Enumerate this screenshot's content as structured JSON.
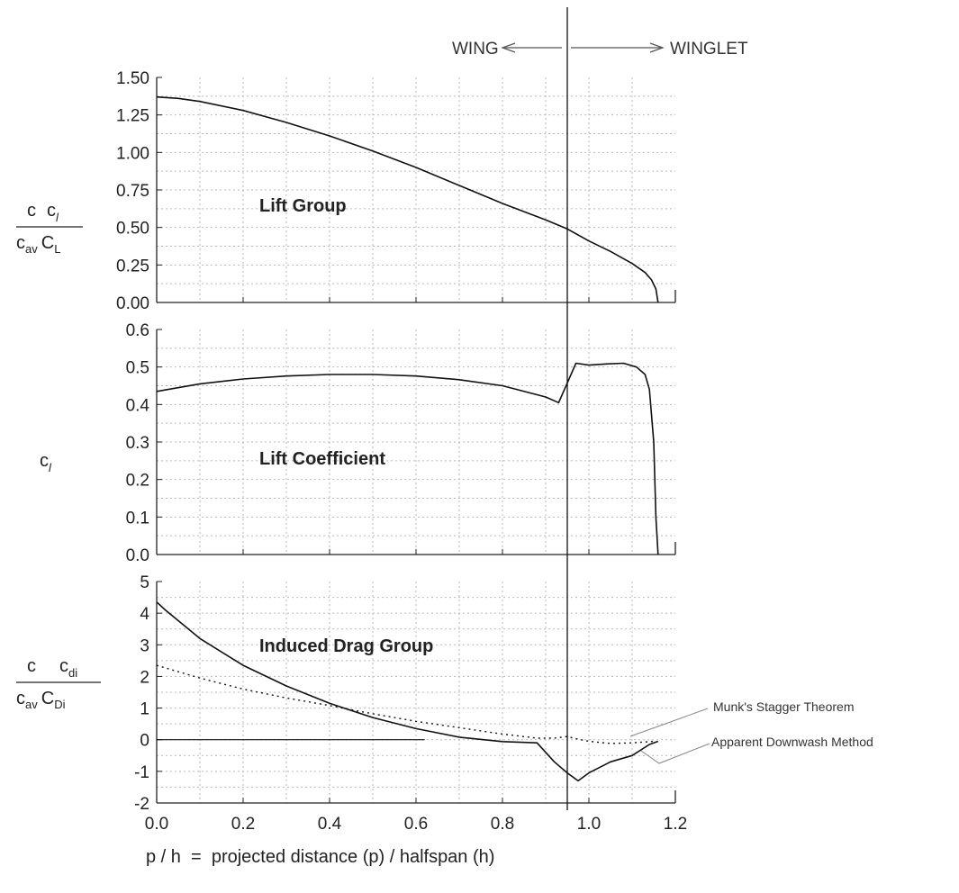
{
  "header": {
    "wing_label": "WING",
    "winglet_label": "WINGLET"
  },
  "xlabel": "p / h  =  projected distance (p) / halfspan (h)",
  "annotations": {
    "munk": "Munk's Stagger Theorem",
    "downwash": "Apparent Downwash Method"
  },
  "y_labels": {
    "top": {
      "num_c": "c",
      "num_c2": "c",
      "num_sub": "l",
      "den_c": "c",
      "den_c_sub": "av",
      "den_C": "C",
      "den_C_sub": "L"
    },
    "mid": {
      "c": "c",
      "sub": "l"
    },
    "bot": {
      "num_c": "c",
      "num_c2": "c",
      "num_sub": "di",
      "den_c": "c",
      "den_c_sub": "av",
      "den_C": "C",
      "den_C_sub": "Di"
    }
  },
  "chart_data": {
    "type": "line",
    "x_ticks": [
      "0.0",
      "0.2",
      "0.4",
      "0.6",
      "0.8",
      "1.0",
      "1.2"
    ],
    "xlim": [
      0,
      1.2
    ],
    "vertical_marker_x": 0.95,
    "grid": true,
    "panels": [
      {
        "id": "lift-group",
        "label": "Lift Group",
        "ylim": [
          0,
          1.5
        ],
        "y_ticks": [
          "0.00",
          "0.25",
          "0.50",
          "0.75",
          "1.00",
          "1.25",
          "1.50"
        ],
        "series": [
          {
            "style": "solid",
            "x": [
              0,
              0.05,
              0.1,
              0.2,
              0.3,
              0.4,
              0.5,
              0.6,
              0.7,
              0.8,
              0.9,
              0.95,
              1.0,
              1.05,
              1.1,
              1.13,
              1.145,
              1.155,
              1.16
            ],
            "y": [
              1.37,
              1.36,
              1.34,
              1.28,
              1.2,
              1.11,
              1.01,
              0.9,
              0.78,
              0.66,
              0.55,
              0.49,
              0.41,
              0.34,
              0.26,
              0.2,
              0.15,
              0.09,
              0.0
            ]
          }
        ]
      },
      {
        "id": "lift-coefficient",
        "label": "Lift Coefficient",
        "ylim": [
          0,
          0.6
        ],
        "y_ticks": [
          "0.0",
          "0.1",
          "0.2",
          "0.3",
          "0.4",
          "0.5",
          "0.6"
        ],
        "series": [
          {
            "style": "solid",
            "x": [
              0,
              0.1,
              0.2,
              0.3,
              0.4,
              0.5,
              0.6,
              0.7,
              0.8,
              0.9,
              0.93,
              0.97,
              1.0,
              1.04,
              1.08,
              1.11,
              1.13,
              1.14,
              1.15,
              1.155,
              1.16
            ],
            "y": [
              0.435,
              0.455,
              0.468,
              0.476,
              0.48,
              0.48,
              0.476,
              0.466,
              0.45,
              0.42,
              0.405,
              0.51,
              0.505,
              0.508,
              0.51,
              0.5,
              0.48,
              0.44,
              0.3,
              0.1,
              0.0
            ]
          }
        ]
      },
      {
        "id": "induced-drag-group",
        "label": "Induced Drag Group",
        "ylim": [
          -2,
          5
        ],
        "y_ticks": [
          "-2",
          "-1",
          "0",
          "1",
          "2",
          "3",
          "4",
          "5"
        ],
        "series": [
          {
            "name": "Apparent Downwash Method",
            "style": "solid",
            "x": [
              0,
              0.02,
              0.1,
              0.2,
              0.3,
              0.4,
              0.5,
              0.6,
              0.7,
              0.8,
              0.88,
              0.92,
              0.95,
              0.975,
              1.0,
              1.05,
              1.1,
              1.14,
              1.16
            ],
            "y": [
              4.35,
              4.1,
              3.2,
              2.35,
              1.7,
              1.15,
              0.7,
              0.35,
              0.08,
              -0.06,
              -0.1,
              -0.7,
              -1.05,
              -1.3,
              -1.05,
              -0.7,
              -0.5,
              -0.15,
              -0.05
            ]
          },
          {
            "name": "Munk's Stagger Theorem",
            "style": "dotted",
            "x": [
              0,
              0.1,
              0.2,
              0.3,
              0.4,
              0.5,
              0.6,
              0.7,
              0.8,
              0.88,
              0.92,
              0.95,
              0.98,
              1.0,
              1.05,
              1.1,
              1.15
            ],
            "y": [
              2.35,
              1.95,
              1.6,
              1.32,
              1.08,
              0.82,
              0.58,
              0.38,
              0.18,
              0.05,
              0.05,
              0.1,
              0.0,
              -0.05,
              -0.12,
              -0.1,
              -0.05
            ]
          },
          {
            "style": "thin",
            "x": [
              0,
              0.62
            ],
            "y": [
              0,
              0
            ]
          }
        ]
      }
    ]
  }
}
